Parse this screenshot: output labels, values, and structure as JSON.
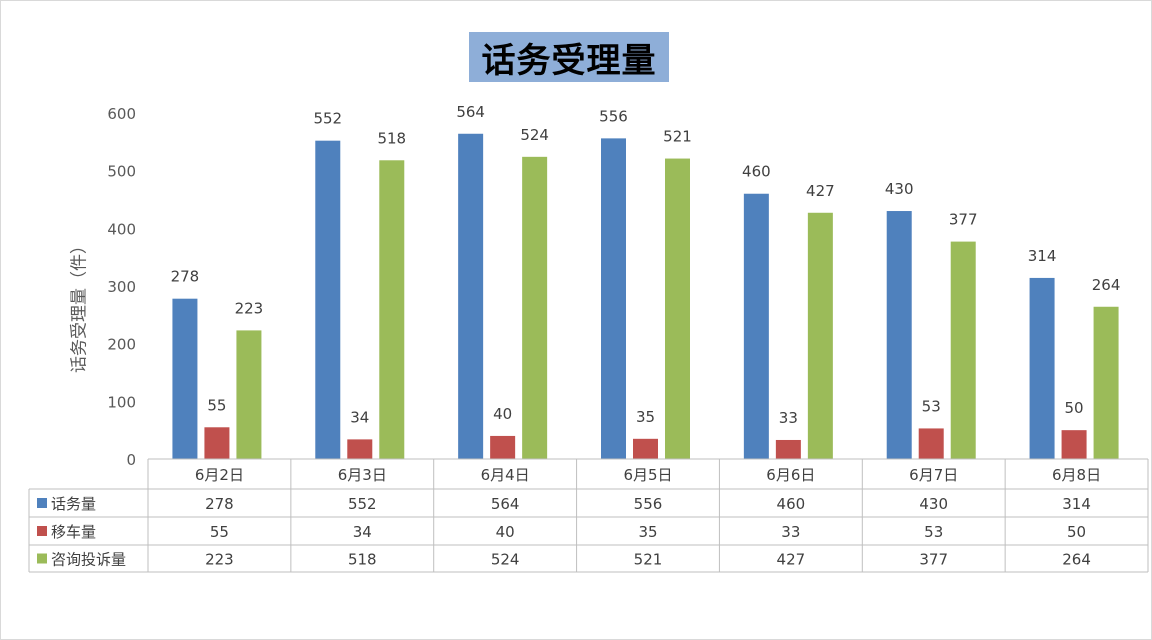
{
  "chart_data": {
    "type": "bar",
    "title": "话务受理量",
    "ylabel": "话务受理量（件）",
    "xlabel": "",
    "ylim": [
      0,
      600
    ],
    "yticks": [
      0,
      100,
      200,
      300,
      400,
      500,
      600
    ],
    "categories": [
      "6月2日",
      "6月3日",
      "6月4日",
      "6月5日",
      "6月6日",
      "6月7日",
      "6月8日"
    ],
    "series": [
      {
        "name": "话务量",
        "color": "#4f81bd",
        "values": [
          278,
          552,
          564,
          556,
          460,
          430,
          314
        ]
      },
      {
        "name": "移车量",
        "color": "#c0504d",
        "values": [
          55,
          34,
          40,
          35,
          33,
          53,
          50
        ]
      },
      {
        "name": "咨询投诉量",
        "color": "#9bbb59",
        "values": [
          223,
          518,
          524,
          521,
          427,
          377,
          264
        ]
      }
    ],
    "grid": false,
    "legend": "data-table"
  }
}
